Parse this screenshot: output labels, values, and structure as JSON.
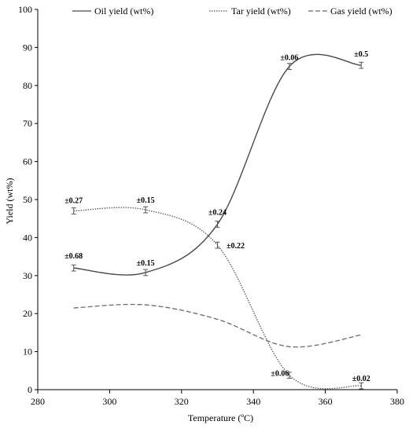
{
  "chart_data": {
    "type": "line",
    "xlabel": "Temperature (ºC)",
    "ylabel": "Yield (wt%)",
    "xlim": [
      280,
      380
    ],
    "ylim": [
      0,
      100
    ],
    "x_ticks": [
      280,
      300,
      320,
      340,
      360,
      380
    ],
    "y_ticks": [
      0,
      10,
      20,
      30,
      40,
      50,
      60,
      70,
      80,
      90,
      100
    ],
    "grid": false,
    "legend_position": "top",
    "x": [
      290,
      310,
      330,
      350,
      370
    ],
    "series": [
      {
        "name": "Oil yield (wt%)",
        "style": "solid",
        "color": "#4a4a4a",
        "values": [
          32.0,
          30.8,
          43.5,
          85.0,
          85.3
        ],
        "errors": [
          0.68,
          0.15,
          0.24,
          0.06,
          0.5
        ],
        "error_labels": [
          "±0.68",
          "±0.15",
          "±0.24",
          "±0.06",
          "±0.5"
        ]
      },
      {
        "name": "Tar yield (wt%)",
        "style": "dotted",
        "color": "#5a5a5a",
        "values": [
          47.0,
          47.3,
          38.0,
          3.8,
          1.0
        ],
        "errors": [
          0.27,
          0.15,
          0.22,
          0.06,
          0.02
        ],
        "error_labels": [
          "±0.27",
          "±0.15",
          "±0.22",
          "±0.06",
          "±0.02"
        ]
      },
      {
        "name": "Gas yield (wt%)",
        "style": "dashed",
        "color": "#6a6a6a",
        "values": [
          21.5,
          22.3,
          18.5,
          11.3,
          14.4
        ]
      }
    ]
  }
}
